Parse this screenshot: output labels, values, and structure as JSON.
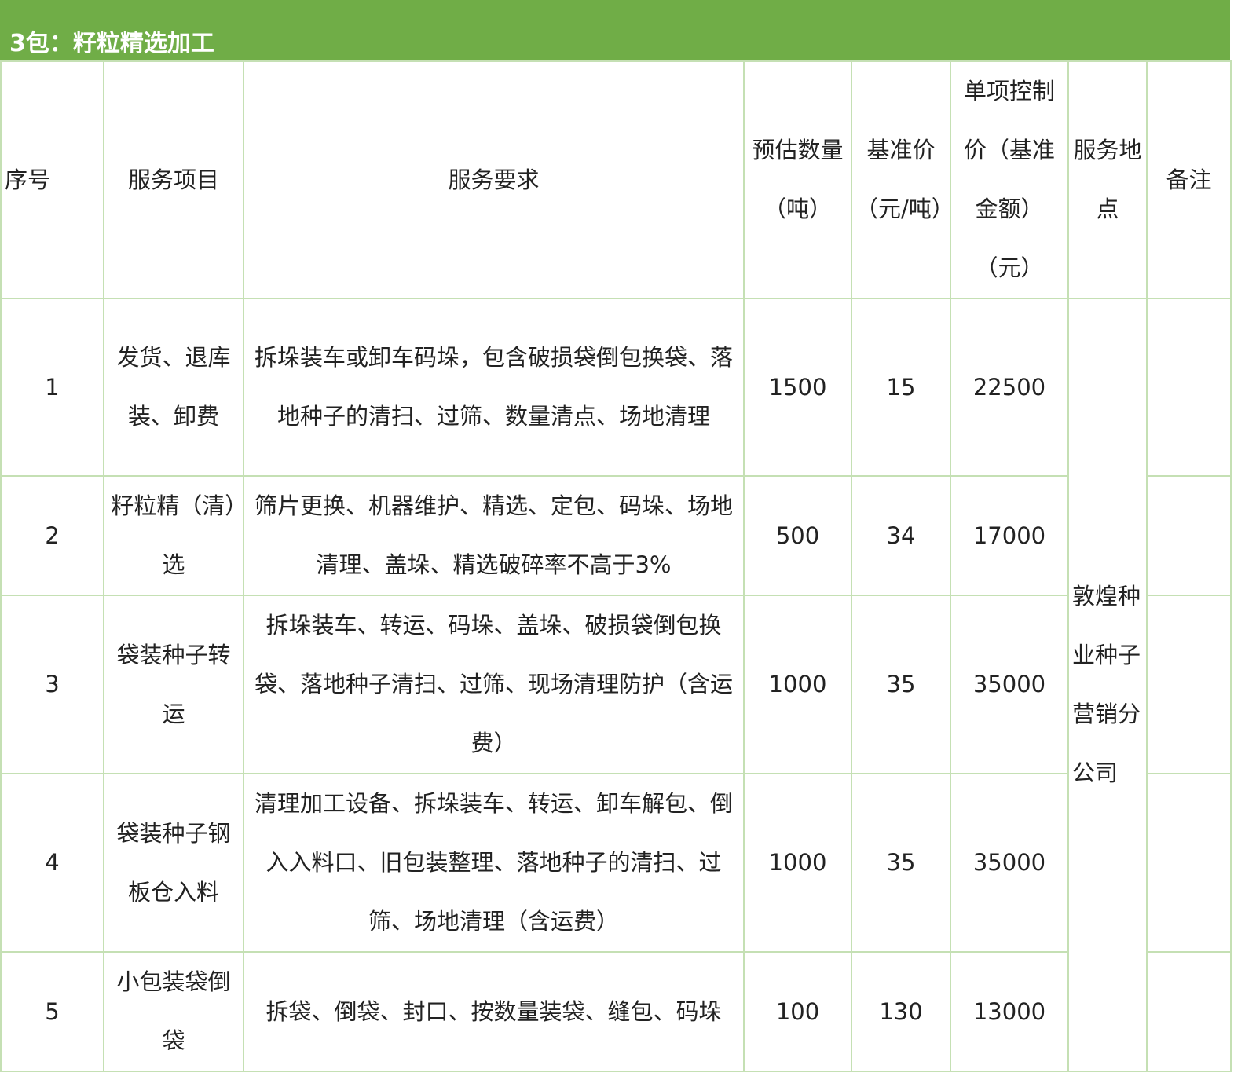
{
  "title": "3包：籽粒精选加工",
  "headers": [
    "序号",
    "服务项目",
    "服务要求",
    "预估数量（吨）",
    "基准价（元/吨）",
    "单项控制价（基准金额）（元）",
    "服务地点",
    "备注"
  ],
  "rows": [
    {
      "no": "1",
      "item": "发货、退库装、卸费",
      "req": "拆垛装车或卸车码垛，包含破损袋倒包换袋、落地种子的清扫、过筛、数量清点、场地清理",
      "qty": "1500",
      "price": "15",
      "total": "22500",
      "note": ""
    },
    {
      "no": "2",
      "item": "籽粒精（清）选",
      "req": "筛片更换、机器维护、精选、定包、码垛、场地清理、盖垛、精选破碎率不高于3%",
      "qty": "500",
      "price": "34",
      "total": "17000",
      "note": ""
    },
    {
      "no": "3",
      "item": "袋装种子转运",
      "req": "拆垛装车、转运、码垛、盖垛、破损袋倒包换袋、落地种子清扫、过筛、现场清理防护（含运费）",
      "qty": "1000",
      "price": "35",
      "total": "35000",
      "note": ""
    },
    {
      "no": "4",
      "item": "袋装种子钢板仓入料",
      "req": "清理加工设备、拆垛装车、转运、卸车解包、倒入入料口、旧包装整理、落地种子的清扫、过筛、场地清理（含运费）",
      "qty": "1000",
      "price": "35",
      "total": "35000",
      "note": ""
    },
    {
      "no": "5",
      "item": "小包装袋倒袋",
      "req": "拆袋、倒袋、封口、按数量装袋、缝包、码垛",
      "qty": "100",
      "price": "130",
      "total": "13000",
      "note": ""
    }
  ],
  "location": "敦煌种业种子营销分公司",
  "colors": {
    "header_bg": "#70ad47",
    "border": "#c5e0b4"
  }
}
